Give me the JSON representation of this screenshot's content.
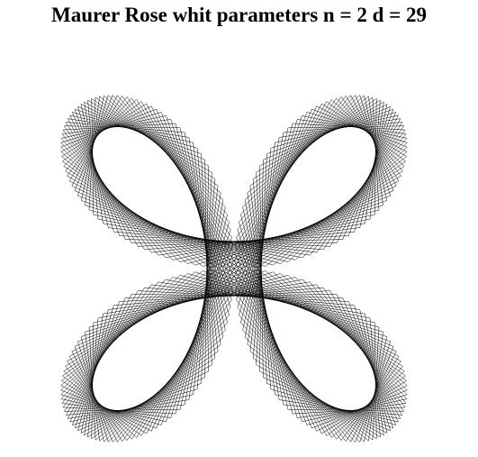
{
  "title": {
    "text": "Maurer Rose whit parameters",
    "n_label": "n =",
    "n": 2,
    "d_label": "d =",
    "d": 29
  }
}
